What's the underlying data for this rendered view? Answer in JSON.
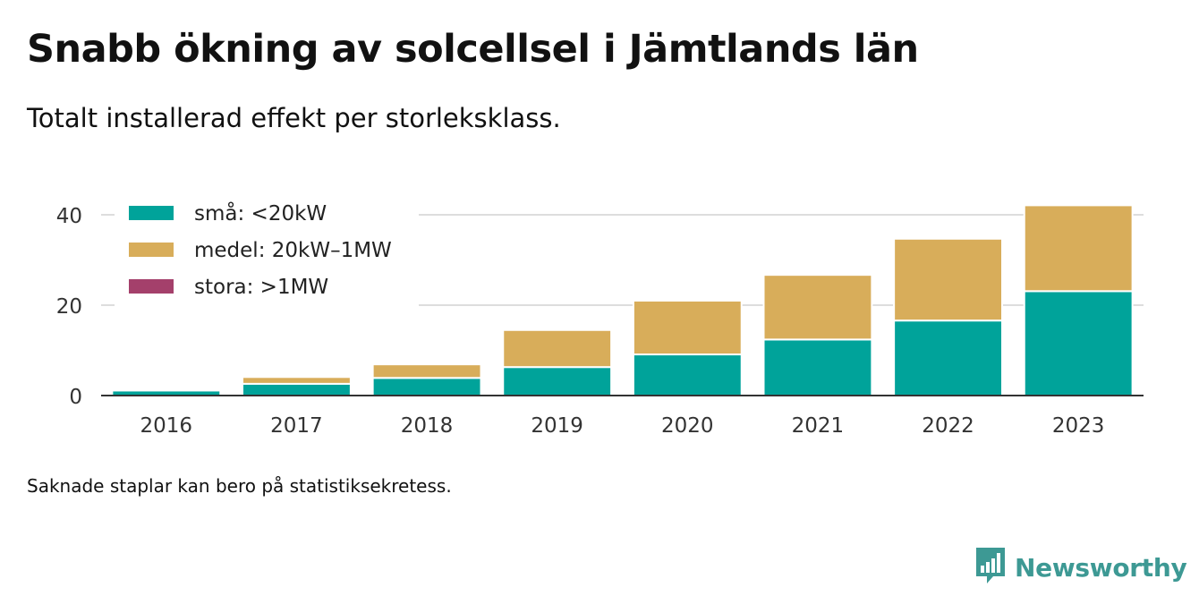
{
  "title": "Snabb ökning av solcellsel i Jämtlands län",
  "subtitle": "Totalt installerad effekt per storleksklass.",
  "note": "Saknade staplar kan bero på statistiksekretess.",
  "brand": {
    "name": "Newsworthy",
    "icon": "newsworthy-logo-icon",
    "color": "#3d9994"
  },
  "chart_data": {
    "type": "bar",
    "stacked": true,
    "categories": [
      "2016",
      "2017",
      "2018",
      "2019",
      "2020",
      "2021",
      "2022",
      "2023"
    ],
    "series": [
      {
        "name": "små: <20kW",
        "color": "#00a39a",
        "values": [
          1.1,
          2.6,
          3.9,
          6.3,
          9.1,
          12.4,
          16.6,
          23.1
        ]
      },
      {
        "name": "medel: 20kW–1MW",
        "color": "#d8ad5a",
        "values": [
          0,
          1.5,
          3.0,
          8.2,
          11.9,
          14.3,
          18.1,
          19.0
        ]
      },
      {
        "name": "stora: >1MW",
        "color": "#a4406b",
        "values": [
          0,
          0,
          0,
          0,
          0,
          0,
          0,
          0
        ]
      }
    ],
    "ylim": [
      0,
      45
    ],
    "yticks": [
      0,
      20,
      40
    ],
    "grid": true,
    "legend": "top-left"
  }
}
